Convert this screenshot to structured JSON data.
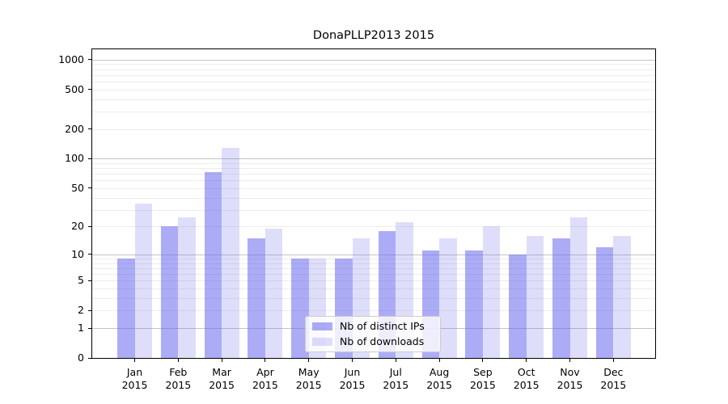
{
  "chart_data": {
    "type": "bar",
    "title": "DonaPLLP2013 2015",
    "x_months": [
      "Jan",
      "Feb",
      "Mar",
      "Apr",
      "May",
      "Jun",
      "Jul",
      "Aug",
      "Sep",
      "Oct",
      "Nov",
      "Dec"
    ],
    "x_year": "2015",
    "series": [
      {
        "name": "Nb of distinct IPs",
        "color": "rgba(104,104,238,0.55)",
        "values": [
          9,
          20,
          73,
          15,
          9,
          9,
          18,
          11,
          11,
          10,
          15,
          12
        ]
      },
      {
        "name": "Nb of downloads",
        "color": "rgba(104,104,238,0.22)",
        "values": [
          35,
          25,
          128,
          19,
          9,
          15,
          22,
          15,
          20,
          16,
          25,
          16
        ]
      }
    ],
    "yscale": "log1p",
    "ylim": [
      0,
      1270
    ],
    "yticks": [
      0,
      1,
      2,
      5,
      10,
      20,
      50,
      100,
      200,
      500,
      1000
    ],
    "ytick_labels": [
      "0",
      "1",
      "2",
      "5",
      "10",
      "20",
      "50",
      "100",
      "200",
      "500",
      "1000"
    ],
    "major_gridlines": [
      1,
      10,
      100,
      1000
    ],
    "minor_gridlines": [
      2,
      3,
      4,
      5,
      6,
      7,
      8,
      9,
      20,
      30,
      40,
      50,
      60,
      70,
      80,
      90,
      200,
      300,
      400,
      500,
      600,
      700,
      800,
      900
    ],
    "grid": true,
    "legend_position": "lower center",
    "colors": {
      "bar_dark_on_white": "#a9a9f7",
      "bar_light_on_white": "#ddddfb",
      "major_grid": "#c3c3c3",
      "minor_grid": "#ececec",
      "axis": "#000000",
      "legend_border": "#cccccc"
    }
  }
}
